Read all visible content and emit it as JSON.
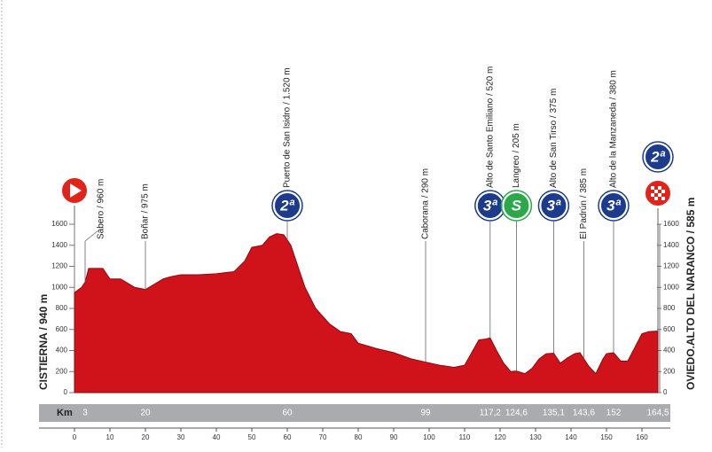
{
  "chart_data": {
    "type": "area",
    "color": "#d0121b",
    "x": [
      0,
      2,
      3,
      4,
      8,
      10,
      13,
      17,
      20,
      22,
      25,
      27,
      30,
      35,
      40,
      45,
      48,
      50,
      53,
      55,
      57,
      59,
      61,
      63,
      65,
      68,
      72,
      75,
      78,
      80,
      85,
      90,
      95,
      99,
      103,
      107,
      110,
      112,
      114,
      116,
      117.2,
      119,
      121,
      123,
      124.6,
      127,
      129,
      131,
      133,
      135.1,
      137,
      139,
      141,
      142.5,
      145,
      147,
      149,
      150,
      152,
      154,
      156,
      158,
      160,
      162,
      164.5
    ],
    "values": [
      950,
      1000,
      1050,
      1180,
      1180,
      1080,
      1080,
      1000,
      980,
      1020,
      1080,
      1100,
      1120,
      1120,
      1130,
      1150,
      1250,
      1380,
      1400,
      1480,
      1510,
      1500,
      1400,
      1200,
      1000,
      800,
      650,
      580,
      560,
      470,
      420,
      380,
      320,
      290,
      260,
      240,
      260,
      380,
      500,
      510,
      520,
      400,
      280,
      200,
      205,
      180,
      230,
      320,
      370,
      375,
      280,
      330,
      370,
      380,
      250,
      180,
      320,
      370,
      380,
      300,
      300,
      430,
      560,
      580,
      585
    ],
    "xlim": [
      0,
      165
    ],
    "ylim": [
      0,
      1600
    ],
    "xticks": [
      0,
      10,
      20,
      30,
      40,
      50,
      60,
      70,
      80,
      90,
      100,
      110,
      120,
      130,
      140,
      150,
      160
    ],
    "yticks": [
      0,
      200,
      400,
      600,
      800,
      1000,
      1200,
      1400,
      1600
    ],
    "x_label": "Km",
    "start": "CISTIERNA / 940 m",
    "finish": "OVIEDO.ALTO DEL NARANCO / 585 m",
    "finish_category": "2ª",
    "waypoints": [
      {
        "name": "Sabero / 960 m",
        "km": 3
      },
      {
        "name": "Boñar / 975 m",
        "km": 20
      },
      {
        "name": "Puerto de San Isidro / 1.520 m",
        "km": 60,
        "category": "2ª"
      },
      {
        "name": "Caborana / 290 m",
        "km": 99
      },
      {
        "name": "Alto de Santo Emiliano / 520 m",
        "km": {
          "value": 117.2,
          "label": "117,2"
        },
        "category": "3ª"
      },
      {
        "name": "Langreo / 205 m",
        "km": {
          "value": 124.6,
          "label": "124,6"
        },
        "category": "S"
      },
      {
        "name": "Alto de San Tirso / 375 m",
        "km": {
          "value": 135.1,
          "label": "135,1"
        },
        "category": "3ª"
      },
      {
        "name": "El Padrún / 385 m",
        "km": {
          "value": 143.6,
          "label": "143,6"
        }
      },
      {
        "name": "Alto de la Manzaneda / 380 m",
        "km": 152,
        "category": "3ª"
      },
      {
        "name": "",
        "km": {
          "value": 164.5,
          "label": "164,5"
        }
      }
    ]
  }
}
